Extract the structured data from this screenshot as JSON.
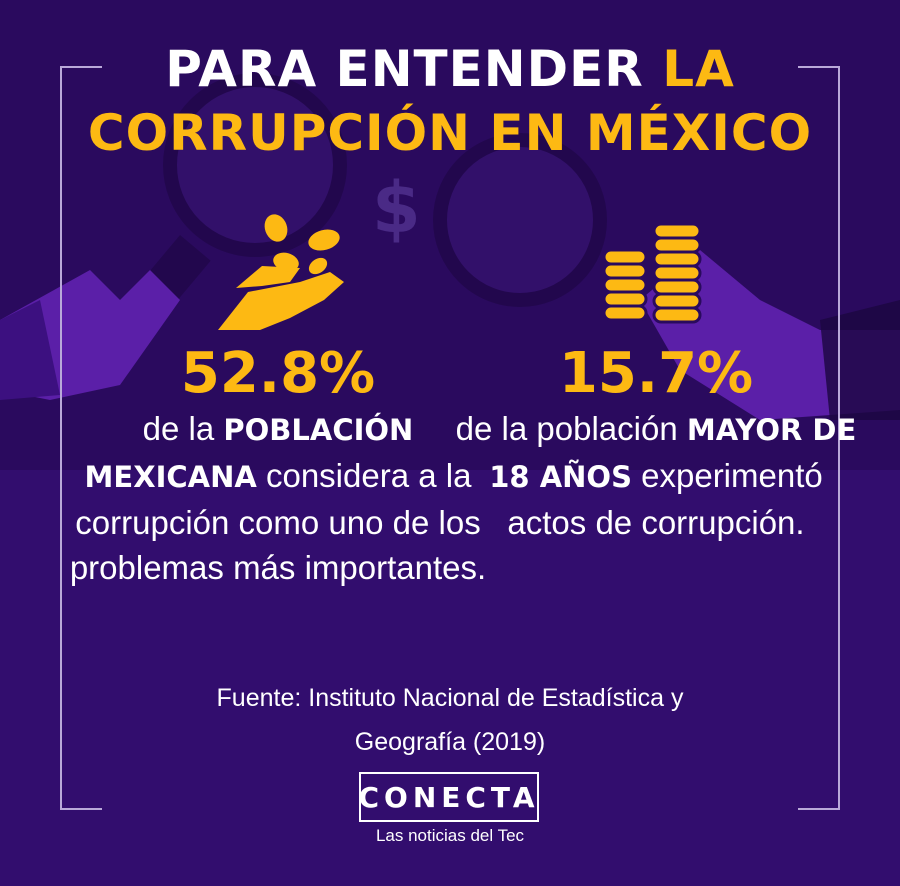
{
  "title": {
    "line1_white": "PARA ENTENDER ",
    "line1_gold": "LA",
    "line2_gold": "CORRUPCIÓN EN MÉXICO"
  },
  "stats": [
    {
      "value": "52.8%",
      "pre": "de la ",
      "bold": "POBLACIÓN MEXICANA",
      "post": " considera a la corrupción como uno de los problemas más importantes."
    },
    {
      "value": "15.7%",
      "pre": "de la población ",
      "bold": "MAYOR DE 18 AÑOS",
      "post": " experimentó actos de corrupción."
    }
  ],
  "source": {
    "line1": "Fuente: Instituto Nacional de Estadística y",
    "line2": "Geografía (2019)"
  },
  "brand": {
    "logo": "CONECTA",
    "tagline": "Las noticias del Tec"
  },
  "colors": {
    "background": "#2a0a5e",
    "accent": "#fdb913",
    "text": "#ffffff"
  },
  "icons": [
    "magnifying-glass-icon",
    "hand-with-coins-icon",
    "coin-stacks-icon",
    "dollar-icon"
  ]
}
